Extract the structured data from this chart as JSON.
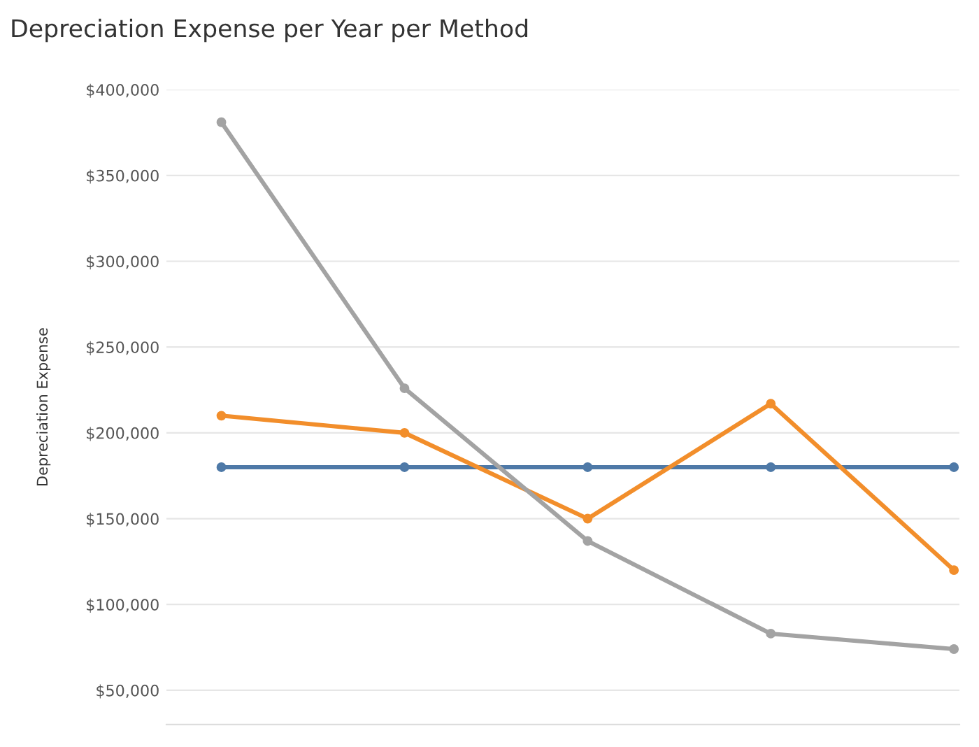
{
  "chart_data": {
    "type": "line",
    "title": "Depreciation Expense per Year per Method",
    "ylabel": "Depreciation Expense",
    "categories": [
      null,
      null,
      null,
      null,
      null
    ],
    "series": [
      {
        "color": "#4e79a7",
        "values": [
          180000,
          180000,
          180000,
          180000,
          180000
        ]
      },
      {
        "color": "#f28e2b",
        "values": [
          210000,
          200000,
          150000,
          217000,
          120000
        ]
      },
      {
        "color": "#a3a3a3",
        "values": [
          381000,
          226000,
          137000,
          83000,
          74000
        ]
      }
    ],
    "ylim": [
      30000,
      400000
    ],
    "yticks": [
      {
        "value": 50000,
        "label": "$50,000"
      },
      {
        "value": 100000,
        "label": "$100,000"
      },
      {
        "value": 150000,
        "label": "$150,000"
      },
      {
        "value": 200000,
        "label": "$200,000"
      },
      {
        "value": 250000,
        "label": "$250,000"
      },
      {
        "value": 300000,
        "label": "$300,000"
      },
      {
        "value": 350000,
        "label": "$350,000"
      },
      {
        "value": 400000,
        "label": "$400,000"
      }
    ],
    "grid": "y",
    "marker": "circle",
    "line_style": "solid",
    "tick_labels": "y"
  }
}
